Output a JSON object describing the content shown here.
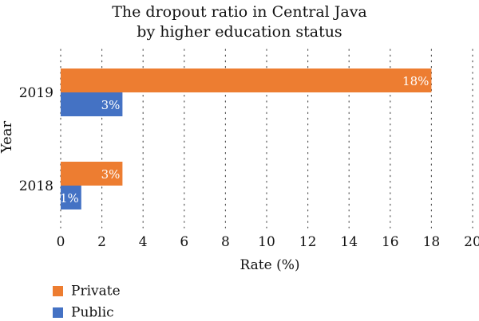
{
  "chart_data": {
    "type": "bar",
    "orientation": "horizontal",
    "title": [
      "The dropout ratio in Central Java",
      "by higher education status"
    ],
    "xlabel": "Rate (%)",
    "ylabel": "Year",
    "xlim": [
      0,
      20
    ],
    "xticks": [
      "0",
      "2",
      "4",
      "6",
      "8",
      "10",
      "12",
      "14",
      "16",
      "18",
      "20"
    ],
    "categories": [
      "2019",
      "2018"
    ],
    "series": [
      {
        "name": "Private",
        "color": "#ED7D31",
        "values": [
          18,
          3
        ],
        "labels": [
          "18%",
          "3%"
        ]
      },
      {
        "name": "Public",
        "color": "#4472C4",
        "values": [
          3,
          1
        ],
        "labels": [
          "3%",
          "1%"
        ]
      }
    ],
    "grid": "vertical dotted",
    "legend": "bottom-left"
  }
}
